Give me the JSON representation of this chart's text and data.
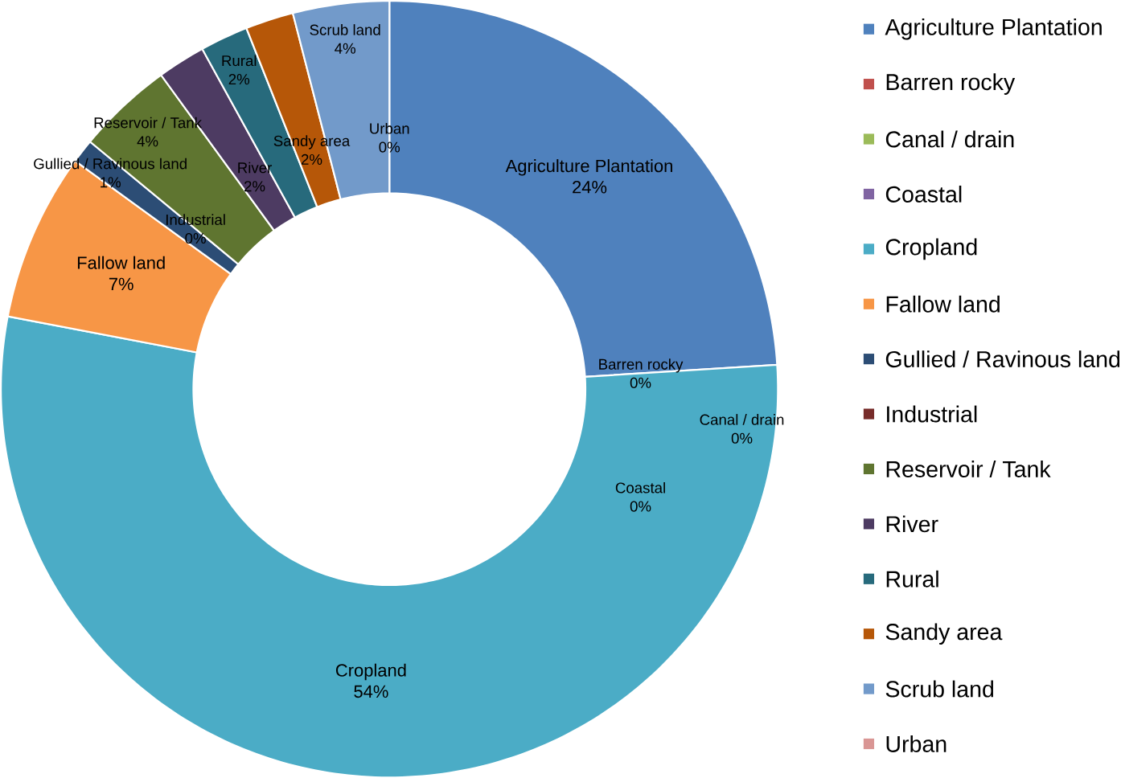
{
  "chart_data": {
    "type": "donut",
    "categories": [
      "Agriculture Plantation",
      "Barren rocky",
      "Canal / drain",
      "Coastal",
      "Cropland",
      "Fallow land",
      "Gullied / Ravinous land",
      "Industrial",
      "Reservoir / Tank",
      "River",
      "Rural",
      "Sandy area",
      "Scrub land",
      "Urban"
    ],
    "values": [
      24,
      0,
      0,
      0,
      54,
      7,
      1,
      0,
      4,
      2,
      2,
      2,
      4,
      0
    ],
    "value_labels": [
      "24%",
      "0%",
      "0%",
      "0%",
      "54%",
      "7%",
      "1%",
      "0%",
      "4%",
      "2%",
      "2%",
      "2%",
      "4%",
      "0%"
    ],
    "colors": [
      "#4f81bd",
      "#c0504d",
      "#9bbb59",
      "#8064a2",
      "#4bacc6",
      "#f79646",
      "#2c4d75",
      "#772c2a",
      "#5f7530",
      "#4d3b62",
      "#276a7c",
      "#b65708",
      "#729aca",
      "#d99694"
    ],
    "legend": "right"
  }
}
